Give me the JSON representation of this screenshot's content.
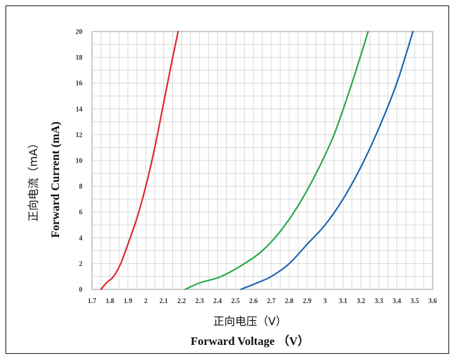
{
  "chart_data": {
    "type": "line",
    "xlabel": [
      "正向电压（V）",
      "Forward Voltage （V）"
    ],
    "ylabel": [
      "正向电流（mA）",
      "Forward Current (mA)"
    ],
    "xlim": [
      1.7,
      3.6
    ],
    "ylim": [
      0,
      20
    ],
    "x_ticks": [
      "1.7",
      "1.8",
      "1.9",
      "2",
      "2.1",
      "2.2",
      "2.3",
      "2.4",
      "2.5",
      "2.6",
      "2.7",
      "2.8",
      "2.9",
      "3",
      "3.1",
      "3.2",
      "3.3",
      "3.4",
      "3.5",
      "3.6"
    ],
    "y_ticks": [
      "0",
      "2",
      "4",
      "6",
      "8",
      "10",
      "12",
      "14",
      "16",
      "18",
      "20"
    ],
    "grid": true,
    "legend": "none",
    "series": [
      {
        "color": "#e0262a",
        "points": [
          [
            1.75,
            0
          ],
          [
            1.78,
            0.5
          ],
          [
            1.82,
            1
          ],
          [
            1.86,
            2
          ],
          [
            1.9,
            3.5
          ],
          [
            1.95,
            5.5
          ],
          [
            2.0,
            8
          ],
          [
            2.05,
            11
          ],
          [
            2.1,
            14.5
          ],
          [
            2.15,
            18
          ],
          [
            2.18,
            20
          ]
        ]
      },
      {
        "color": "#2aa84a",
        "points": [
          [
            2.22,
            0
          ],
          [
            2.3,
            0.5
          ],
          [
            2.42,
            1
          ],
          [
            2.55,
            2
          ],
          [
            2.65,
            3
          ],
          [
            2.75,
            4.5
          ],
          [
            2.85,
            6.5
          ],
          [
            2.95,
            9
          ],
          [
            3.05,
            12
          ],
          [
            3.15,
            16
          ],
          [
            3.24,
            20
          ]
        ]
      },
      {
        "color": "#1e64b0",
        "points": [
          [
            2.53,
            0
          ],
          [
            2.62,
            0.5
          ],
          [
            2.7,
            1
          ],
          [
            2.8,
            2
          ],
          [
            2.9,
            3.5
          ],
          [
            3.0,
            5
          ],
          [
            3.1,
            7
          ],
          [
            3.2,
            9.5
          ],
          [
            3.3,
            12.5
          ],
          [
            3.4,
            16
          ],
          [
            3.49,
            20
          ]
        ]
      }
    ]
  }
}
